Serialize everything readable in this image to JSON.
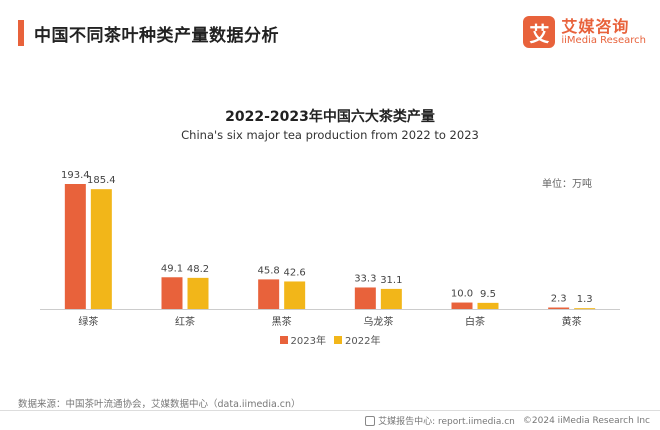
{
  "header": {
    "title": "中国不同茶叶种类产量数据分析",
    "logo_mark": "艾",
    "logo_cn": "艾媒咨询",
    "logo_en": "iiMedia Research"
  },
  "unit_label": "单位：万吨",
  "source": "数据来源：中国茶叶流通协会，艾媒数据中心（data.iimedia.cn）",
  "footer": {
    "report": "艾媒报告中心: report.iimedia.cn",
    "copyright": "©2024  iiMedia Research  Inc"
  },
  "colors": {
    "series_2023": "#e8623b",
    "series_2022": "#f2b619",
    "accent": "#e8623b"
  },
  "chart_data": {
    "type": "bar",
    "title": "2022-2023年中国六大茶类产量",
    "subtitle": "China's six major tea production from 2022 to 2023",
    "categories": [
      "绿茶",
      "红茶",
      "黑茶",
      "乌龙茶",
      "白茶",
      "黄茶"
    ],
    "series": [
      {
        "name": "2023年",
        "values": [
          193.4,
          49.1,
          45.8,
          33.3,
          10.0,
          2.3
        ],
        "color": "#e8623b",
        "labels": [
          "193.4",
          "49.1",
          "45.8",
          "33.3",
          "10.0",
          "2.3"
        ]
      },
      {
        "name": "2022年",
        "values": [
          185.4,
          48.2,
          42.6,
          31.1,
          9.5,
          1.3
        ],
        "color": "#f2b619",
        "labels": [
          "185.4",
          "48.2",
          "42.6",
          "31.1",
          "9.5",
          "1.3"
        ]
      }
    ],
    "xlabel": "",
    "ylabel": "万吨",
    "ylim": [
      0,
      200
    ],
    "legend": "bottom-center",
    "grid": false
  }
}
